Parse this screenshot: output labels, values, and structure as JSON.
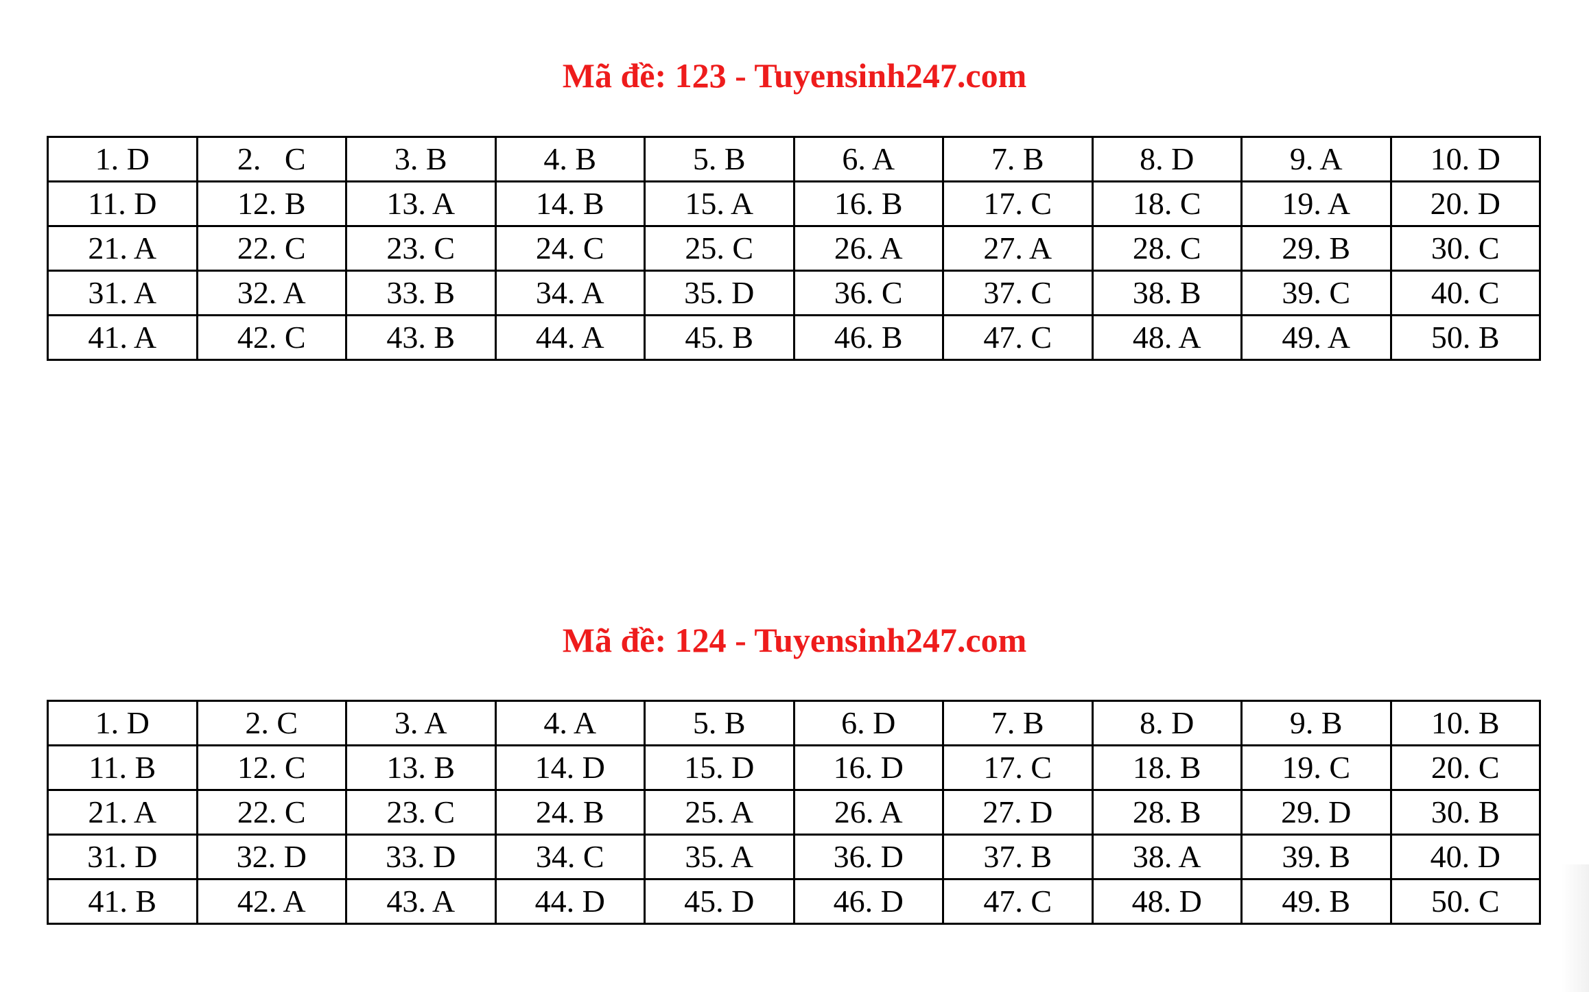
{
  "sections": [
    {
      "title": "Mã đề: 123 - Tuyensinh247.com",
      "rows": [
        [
          "1. D",
          "2.   C",
          "3. B",
          "4. B",
          "5. B",
          "6. A",
          "7. B",
          "8. D",
          "9. A",
          "10. D"
        ],
        [
          "11. D",
          "12. B",
          "13. A",
          "14. B",
          "15. A",
          "16. B",
          "17. C",
          "18. C",
          "19. A",
          "20. D"
        ],
        [
          "21. A",
          "22. C",
          "23. C",
          "24. C",
          "25. C",
          "26. A",
          "27. A",
          "28. C",
          "29. B",
          "30. C"
        ],
        [
          "31. A",
          "32. A",
          "33. B",
          "34. A",
          "35. D",
          "36. C",
          "37. C",
          "38. B",
          "39. C",
          "40. C"
        ],
        [
          "41. A",
          "42. C",
          "43. B",
          "44. A",
          "45. B",
          "46. B",
          "47. C",
          "48. A",
          "49. A",
          "50. B"
        ]
      ]
    },
    {
      "title": "Mã đề: 124 - Tuyensinh247.com",
      "rows": [
        [
          "1. D",
          "2. C",
          "3. A",
          "4. A",
          "5. B",
          "6. D",
          "7. B",
          "8. D",
          "9. B",
          "10. B"
        ],
        [
          "11. B",
          "12. C",
          "13. B",
          "14. D",
          "15. D",
          "16. D",
          "17. C",
          "18. B",
          "19. C",
          "20. C"
        ],
        [
          "21. A",
          "22. C",
          "23. C",
          "24. B",
          "25. A",
          "26. A",
          "27. D",
          "28. B",
          "29. D",
          "30. B"
        ],
        [
          "31. D",
          "32. D",
          "33. D",
          "34. C",
          "35. A",
          "36. D",
          "37. B",
          "38. A",
          "39. B",
          "40. D"
        ],
        [
          "41. B",
          "42. A",
          "43. A",
          "44. D",
          "45. D",
          "46. D",
          "47. C",
          "48. D",
          "49. B",
          "50. C"
        ]
      ]
    }
  ],
  "colors": {
    "title": "#ee1c1c",
    "text": "#000000"
  }
}
